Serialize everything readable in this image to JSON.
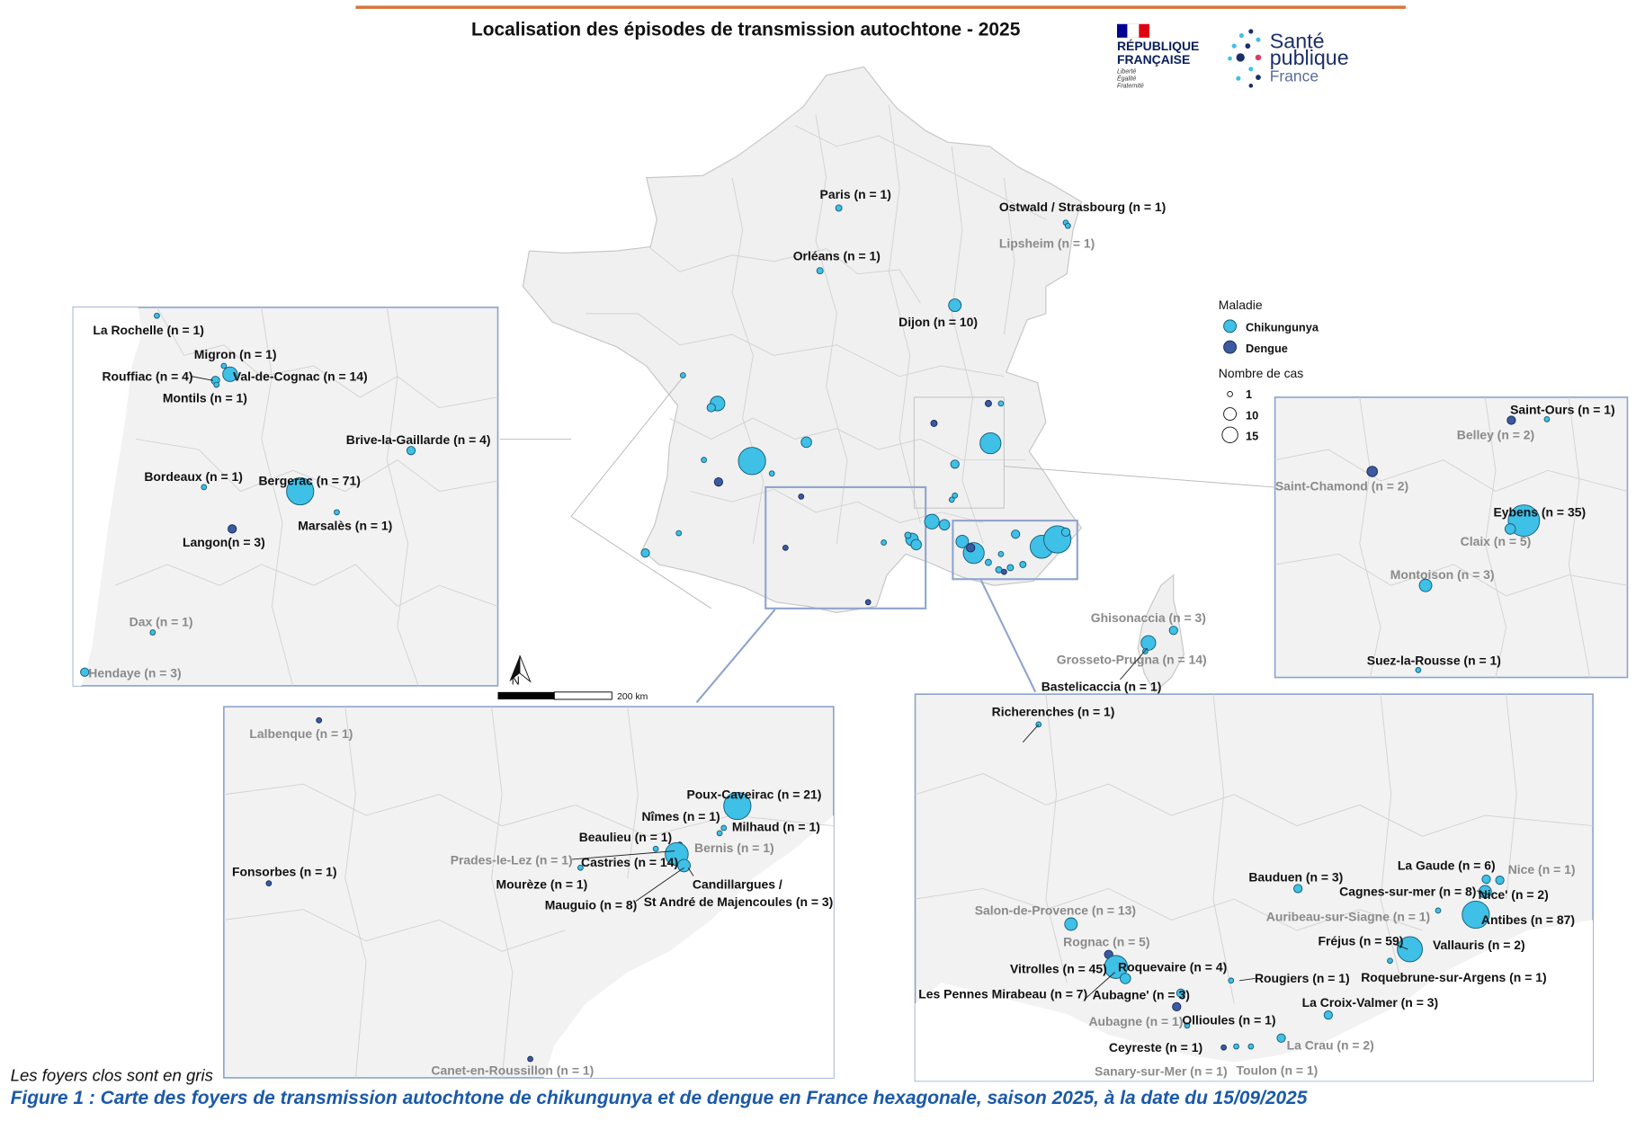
{
  "title": "Localisation des épisodes de transmission autochtone - 2025",
  "logos": {
    "gov_line1": "RÉPUBLIQUE",
    "gov_line2": "FRANÇAISE",
    "gov_motto1": "Liberté",
    "gov_motto2": "Égalité",
    "gov_motto3": "Fraternité",
    "spf_line1": "Santé",
    "spf_line2": "publique",
    "spf_line3": "France"
  },
  "legend": {
    "disease_title": "Maladie",
    "chik": "Chikungunya",
    "dengue": "Dengue",
    "cases_title": "Nombre de cas",
    "size_1": "1",
    "size_10": "10",
    "size_15": "15"
  },
  "scale_label": "200 km",
  "north_label": "N",
  "footnote": "Les foyers clos sont en gris",
  "caption": "Figure 1 : Carte des foyers de transmission autochtone de chikungunya et de dengue en France hexagonale, saison 2025, à la date du 15/09/2025",
  "colors": {
    "chikungunya": "#3fc0e6",
    "dengue": "#3b5aa0",
    "open_label": "#111111",
    "closed_label": "#8a8a8a",
    "caption": "#1b59a8"
  },
  "main_labels": {
    "paris": "Paris (n = 1)",
    "orleans": "Orléans (n = 1)",
    "dijon": "Dijon (n = 10)",
    "ostwald": "Ostwald / Strasbourg (n = 1)",
    "lipsheim": "Lipsheim (n = 1)",
    "ghisonaccia": "Ghisonaccia (n = 3)",
    "grosseto": "Grosseto-Prugna (n = 14)",
    "bastelicaccia": "Bastelicaccia (n = 1)"
  },
  "sw_inset": {
    "larochelle": "La Rochelle (n = 1)",
    "migron": "Migron (n = 1)",
    "rouffiac": "Rouffiac (n = 4)",
    "valdecognac": "Val-de-Cognac (n = 14)",
    "montils": "Montils (n = 1)",
    "brive": "Brive-la-Gaillarde (n = 4)",
    "bordeaux": "Bordeaux (n = 1)",
    "bergerac": "Bergerac (n = 71)",
    "marsales": "Marsalès (n =  1)",
    "langon": "Langon(n = 3)",
    "dax": "Dax (n = 1)",
    "hendaye": "Hendaye (n = 3)"
  },
  "ra_inset": {
    "saintours": "Saint-Ours (n = 1)",
    "belley": "Belley (n = 2)",
    "saintchamond": "Saint-Chamond (n = 2)",
    "eybens": "Eybens (n = 35)",
    "claix": "Claix (n = 5)",
    "montoison": "Montoison (n = 3)",
    "suze": "Suez-la-Rousse (n = 1)"
  },
  "occ_inset": {
    "lalbenque": "Lalbenque (n = 1)",
    "poux": "Poux-Caveirac (n = 21)",
    "nimes": "Nîmes (n = 1)",
    "milhaud": "Milhaud (n = 1)",
    "beaulieu": "Beaulieu (n = 1)",
    "bernis": "Bernis (n = 1)",
    "prades": "Prades-le-Lez (n = 1)",
    "castries": "Castries (n = 14)",
    "fonsorbes": "Fonsorbes (n = 1)",
    "candillargues1": "Candillargues /",
    "candillargues2": "St André de Majencoules (n = 3)",
    "moureze": "Mourèze (n = 1)",
    "mauguio": "Mauguio (n = 8)",
    "canet": "Canet-en-Roussillon (n = 1)"
  },
  "paca_inset": {
    "richerenches": "Richerenches (n = 1)",
    "lagaude": "La Gaude (n = 6)",
    "nice1": "Nice (n = 1)",
    "bauduen": "Bauduen (n = 3)",
    "cagnes": "Cagnes-sur-mer (n = 8)",
    "nice2": "Nice' (n = 2)",
    "salon": "Salon-de-Provence (n = 13)",
    "auribeau": "Auribeau-sur-Siagne (n = 1)",
    "antibes": "Antibes (n = 87)",
    "rognac": "Rognac (n = 5)",
    "frejus": "Fréjus (n = 59)",
    "vallauris": "Vallauris (n = 2)",
    "vitrolles": "Vitrolles (n = 45)",
    "roquevaire": "Roquevaire (n = 4)",
    "rougiers": "Rougiers (n = 1)",
    "roquebrune": "Roquebrune-sur-Argens (n = 1)",
    "pennes": "Les Pennes Mirabeau (n = 7)",
    "aubagne2": "Aubagne' (n = 3)",
    "croix": "La Croix-Valmer (n = 3)",
    "aubagne1": "Aubagne (n = 1)",
    "ollioules": "Ollioules (n = 1)",
    "ceyreste": "Ceyreste (n = 1)",
    "lacrau": "La Crau (n = 2)",
    "sanary": "Sanary-sur-Mer (n = 1)",
    "toulon": "Toulon (n = 1)"
  }
}
